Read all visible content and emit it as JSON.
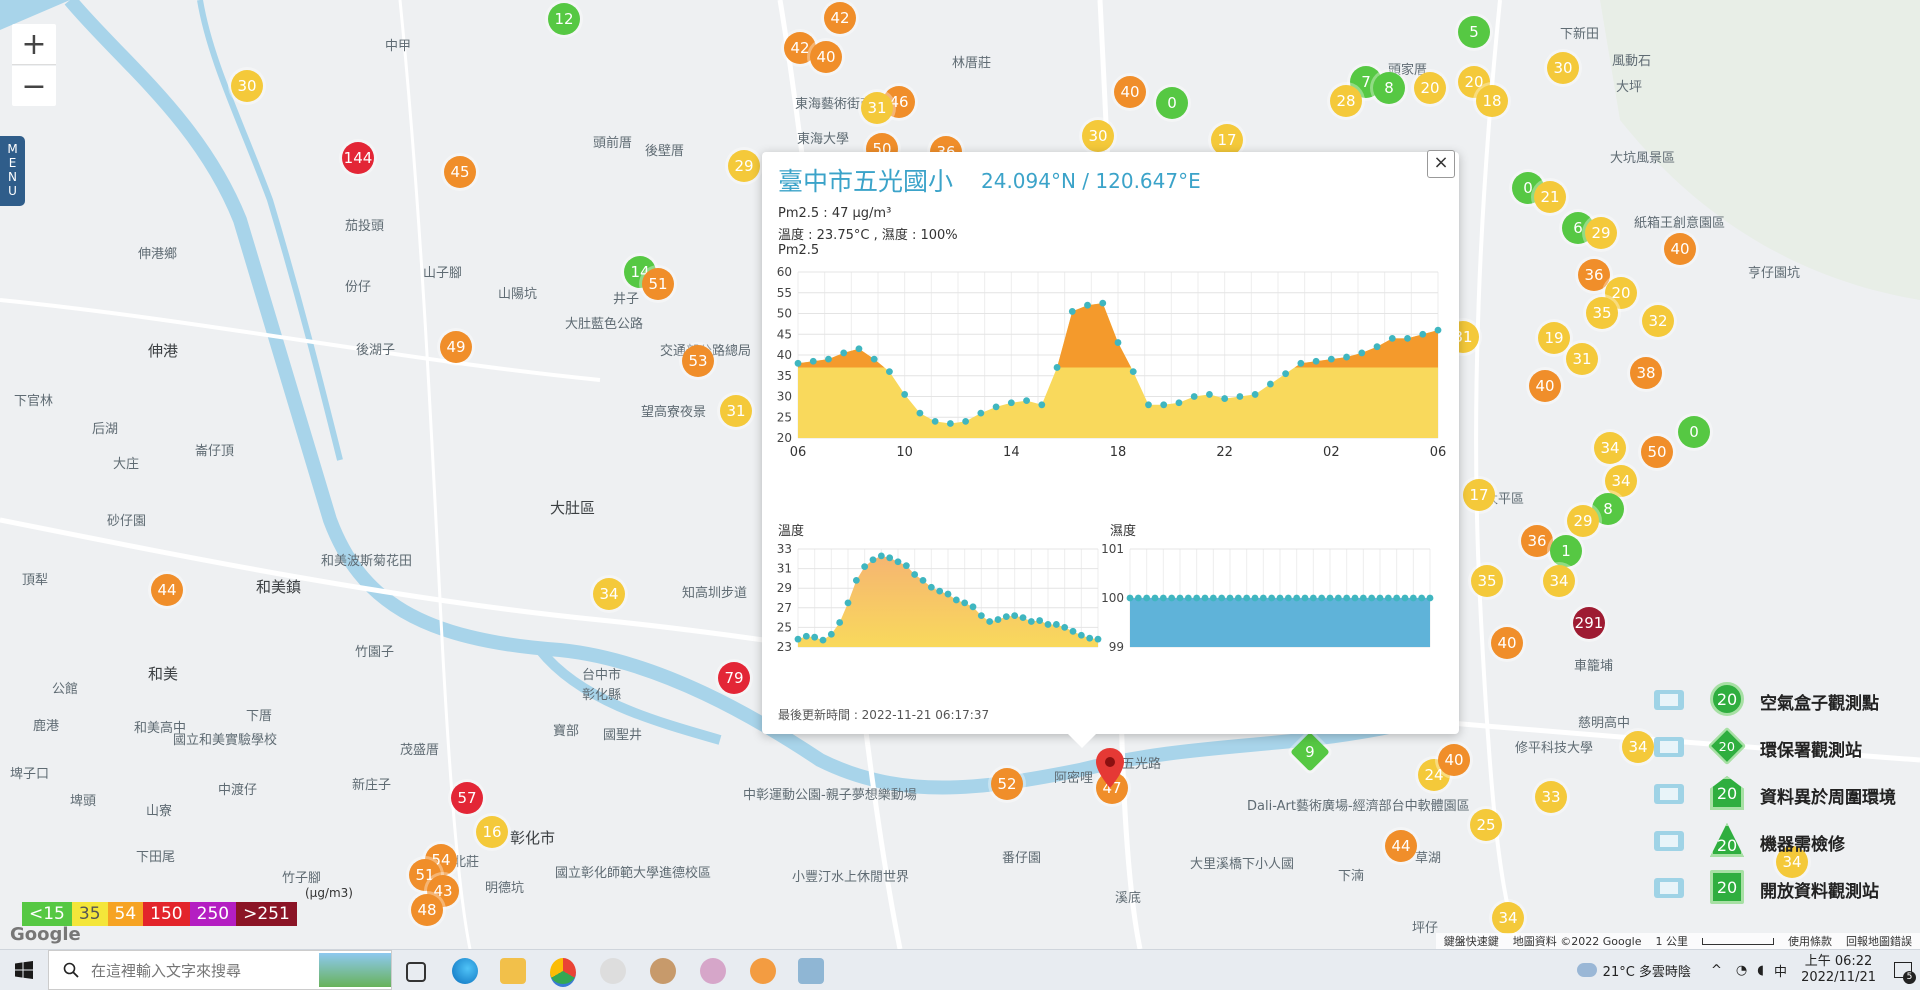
{
  "map": {
    "zoom_in": "+",
    "zoom_out": "−",
    "menu_label": "MENU",
    "places": [
      {
        "name": "伸港鄉",
        "big": false
      },
      {
        "name": "伸港",
        "big": true
      },
      {
        "name": "和美鎮",
        "big": true
      },
      {
        "name": "和美",
        "big": true
      },
      {
        "name": "大肚區",
        "big": true
      },
      {
        "name": "彰化市",
        "big": true
      },
      {
        "name": "頭前厝",
        "big": false
      },
      {
        "name": "後壁厝",
        "big": false
      },
      {
        "name": "林厝莊",
        "big": false
      },
      {
        "name": "東海藝術街商圈",
        "big": false
      },
      {
        "name": "東海大學",
        "big": false
      },
      {
        "name": "大肚藍色公路",
        "big": false
      },
      {
        "name": "交通部公路總局",
        "big": false
      },
      {
        "name": "望高寮夜景",
        "big": false
      },
      {
        "name": "山陽坑",
        "big": false
      },
      {
        "name": "井子",
        "big": false
      },
      {
        "name": "後湖子",
        "big": false
      },
      {
        "name": "份仔",
        "big": false
      },
      {
        "name": "茄投頭",
        "big": false
      },
      {
        "name": "山子腳",
        "big": false
      },
      {
        "name": "中甲",
        "big": false
      },
      {
        "name": "下官林",
        "big": false
      },
      {
        "name": "后湖",
        "big": false
      },
      {
        "name": "大庄",
        "big": false
      },
      {
        "name": "崙仔頂",
        "big": false
      },
      {
        "name": "砂仔園",
        "big": false
      },
      {
        "name": "頂犁",
        "big": false
      },
      {
        "name": "公館",
        "big": false
      },
      {
        "name": "下厝",
        "big": false
      },
      {
        "name": "竹園子",
        "big": false
      },
      {
        "name": "新庄子",
        "big": false
      },
      {
        "name": "茂盛厝",
        "big": false
      },
      {
        "name": "中渡仔",
        "big": false
      },
      {
        "name": "山寮",
        "big": false
      },
      {
        "name": "埤頭",
        "big": false
      },
      {
        "name": "下田尾",
        "big": false
      },
      {
        "name": "竹子腳",
        "big": false
      },
      {
        "name": "萬北莊",
        "big": false
      },
      {
        "name": "明德坑",
        "big": false
      },
      {
        "name": "台中市",
        "big": false
      },
      {
        "name": "彰化縣",
        "big": false
      },
      {
        "name": "寶部",
        "big": false
      },
      {
        "name": "國聖井",
        "big": false
      },
      {
        "name": "番仔園",
        "big": false
      },
      {
        "name": "阿密哩",
        "big": false
      },
      {
        "name": "溪底",
        "big": false
      },
      {
        "name": "大里溪橋下小人國",
        "big": false
      },
      {
        "name": "草湖",
        "big": false
      },
      {
        "name": "下湳",
        "big": false
      },
      {
        "name": "坪仔",
        "big": false
      },
      {
        "name": "太平區",
        "big": false
      },
      {
        "name": "大坑風景區",
        "big": false
      },
      {
        "name": "風動石",
        "big": false
      },
      {
        "name": "大坪",
        "big": false
      },
      {
        "name": "下新田",
        "big": false
      },
      {
        "name": "頭家厝",
        "big": false
      },
      {
        "name": "紙箱王創意園區",
        "big": false
      },
      {
        "name": "亨仔園坑",
        "big": false
      },
      {
        "name": "車籠埔",
        "big": false
      },
      {
        "name": "慈明高中",
        "big": false
      },
      {
        "name": "修平科技大學",
        "big": false
      },
      {
        "name": "知高圳步道",
        "big": false
      },
      {
        "name": "國立彰化師範大學進德校區",
        "big": false
      },
      {
        "name": "中彰運動公園-親子夢想樂動場",
        "big": false
      },
      {
        "name": "小豐汀水上休閒世界",
        "big": false
      },
      {
        "name": "Dali-Art藝術廣場-經濟部台中軟體園區",
        "big": false
      },
      {
        "name": "五光路",
        "big": false
      },
      {
        "name": "和美波斯菊花田",
        "big": false
      },
      {
        "name": "國立和美實驗學校",
        "big": false
      },
      {
        "name": "鹿港",
        "big": false
      },
      {
        "name": "和美高中",
        "big": false
      },
      {
        "name": "埤子口",
        "big": false
      }
    ],
    "markers": [
      {
        "v": "12",
        "c": "#56c843",
        "s": "circle"
      },
      {
        "v": "42",
        "c": "#f08e2a",
        "s": "circle"
      },
      {
        "v": "40",
        "c": "#f08e2a",
        "s": "circle"
      },
      {
        "v": "42",
        "c": "#f08e2a",
        "s": "circle"
      },
      {
        "v": "30",
        "c": "#f4c93a",
        "s": "circle"
      },
      {
        "v": "144",
        "c": "#e32636",
        "s": "circle"
      },
      {
        "v": "45",
        "c": "#f08e2a",
        "s": "circle"
      },
      {
        "v": "46",
        "c": "#f08e2a",
        "s": "circle"
      },
      {
        "v": "31",
        "c": "#f4c93a",
        "s": "circle"
      },
      {
        "v": "50",
        "c": "#f08e2a",
        "s": "circle"
      },
      {
        "v": "36",
        "c": "#f08e2a",
        "s": "circle"
      },
      {
        "v": "29",
        "c": "#f4c93a",
        "s": "circle"
      },
      {
        "v": "40",
        "c": "#f08e2a",
        "s": "circle"
      },
      {
        "v": "0",
        "c": "#56c843",
        "s": "circle"
      },
      {
        "v": "30",
        "c": "#f4c93a",
        "s": "circle"
      },
      {
        "v": "17",
        "c": "#f4c93a",
        "s": "circle"
      },
      {
        "v": "5",
        "c": "#56c843",
        "s": "circle"
      },
      {
        "v": "7",
        "c": "#56c843",
        "s": "circle"
      },
      {
        "v": "28",
        "c": "#f4c93a",
        "s": "circle"
      },
      {
        "v": "8",
        "c": "#56c843",
        "s": "circle"
      },
      {
        "v": "20",
        "c": "#f4c93a",
        "s": "circle"
      },
      {
        "v": "20",
        "c": "#f4c93a",
        "s": "circle"
      },
      {
        "v": "18",
        "c": "#f4c93a",
        "s": "circle"
      },
      {
        "v": "30",
        "c": "#f4c93a",
        "s": "circle"
      },
      {
        "v": "14",
        "c": "#56c843",
        "s": "circle"
      },
      {
        "v": "51",
        "c": "#f08e2a",
        "s": "circle"
      },
      {
        "v": "49",
        "c": "#f08e2a",
        "s": "circle"
      },
      {
        "v": "53",
        "c": "#f08e2a",
        "s": "circle"
      },
      {
        "v": "31",
        "c": "#f4c93a",
        "s": "circle"
      },
      {
        "v": "0",
        "c": "#56c843",
        "s": "circle"
      },
      {
        "v": "21",
        "c": "#f4c93a",
        "s": "circle"
      },
      {
        "v": "6",
        "c": "#56c843",
        "s": "circle"
      },
      {
        "v": "29",
        "c": "#f4c93a",
        "s": "circle"
      },
      {
        "v": "36",
        "c": "#f08e2a",
        "s": "circle"
      },
      {
        "v": "20",
        "c": "#f4c93a",
        "s": "circle"
      },
      {
        "v": "35",
        "c": "#f4c93a",
        "s": "circle"
      },
      {
        "v": "40",
        "c": "#f08e2a",
        "s": "circle"
      },
      {
        "v": "32",
        "c": "#f4c93a",
        "s": "circle"
      },
      {
        "v": "19",
        "c": "#f4c93a",
        "s": "circle"
      },
      {
        "v": "31",
        "c": "#f4c93a",
        "s": "circle"
      },
      {
        "v": "38",
        "c": "#f08e2a",
        "s": "circle"
      },
      {
        "v": "40",
        "c": "#f08e2a",
        "s": "circle"
      },
      {
        "v": "31",
        "c": "#f4c93a",
        "s": "circle"
      },
      {
        "v": "0",
        "c": "#56c843",
        "s": "circle"
      },
      {
        "v": "34",
        "c": "#f4c93a",
        "s": "circle"
      },
      {
        "v": "50",
        "c": "#f08e2a",
        "s": "circle"
      },
      {
        "v": "34",
        "c": "#f4c93a",
        "s": "circle"
      },
      {
        "v": "17",
        "c": "#f4c93a",
        "s": "circle"
      },
      {
        "v": "8",
        "c": "#56c843",
        "s": "circle"
      },
      {
        "v": "29",
        "c": "#f4c93a",
        "s": "circle"
      },
      {
        "v": "36",
        "c": "#f08e2a",
        "s": "circle"
      },
      {
        "v": "1",
        "c": "#56c843",
        "s": "circle"
      },
      {
        "v": "35",
        "c": "#f4c93a",
        "s": "circle"
      },
      {
        "v": "34",
        "c": "#f4c93a",
        "s": "circle"
      },
      {
        "v": "291",
        "c": "#9e1b32",
        "s": "circle"
      },
      {
        "v": "40",
        "c": "#f08e2a",
        "s": "circle"
      },
      {
        "v": "44",
        "c": "#f08e2a",
        "s": "circle"
      },
      {
        "v": "34",
        "c": "#f4c93a",
        "s": "circle"
      },
      {
        "v": "79",
        "c": "#e32636",
        "s": "circle"
      },
      {
        "v": "57",
        "c": "#e32636",
        "s": "circle"
      },
      {
        "v": "16",
        "c": "#f4c93a",
        "s": "circle"
      },
      {
        "v": "54",
        "c": "#f08e2a",
        "s": "circle"
      },
      {
        "v": "51",
        "c": "#f08e2a",
        "s": "circle"
      },
      {
        "v": "43",
        "c": "#f08e2a",
        "s": "circle"
      },
      {
        "v": "48",
        "c": "#f08e2a",
        "s": "circle"
      },
      {
        "v": "52",
        "c": "#f08e2a",
        "s": "circle"
      },
      {
        "v": "47",
        "c": "#f08e2a",
        "s": "circle"
      },
      {
        "v": "9",
        "c": "#56c843",
        "s": "diamond"
      },
      {
        "v": "34",
        "c": "#f4c93a",
        "s": "circle"
      },
      {
        "v": "24",
        "c": "#f4c93a",
        "s": "circle"
      },
      {
        "v": "40",
        "c": "#f08e2a",
        "s": "circle"
      },
      {
        "v": "33",
        "c": "#f4c93a",
        "s": "circle"
      },
      {
        "v": "25",
        "c": "#f4c93a",
        "s": "circle"
      },
      {
        "v": "44",
        "c": "#f08e2a",
        "s": "circle"
      },
      {
        "v": "34",
        "c": "#f4c93a",
        "s": "circle"
      },
      {
        "v": "34",
        "c": "#f4c93a",
        "s": "circle"
      }
    ],
    "popup": {
      "station": "臺中市五光國小",
      "coord": "24.094°N / 120.647°E",
      "pm25_line": "Pm2.5 : 47 μg/m³",
      "temp_line": "溫度 : 23.75°C , 濕度 : 100%",
      "pm25_title": "Pm2.5",
      "temp_title": "溫度",
      "hum_title": "濕度",
      "updated": "最後更新時間 : 2022-11-21 06:17:37",
      "close": "×"
    },
    "legend": {
      "unit": "(μg/m3)",
      "levels": [
        {
          "label": "<15",
          "color": "#56c843"
        },
        {
          "label": "35",
          "color": "#f4e63a"
        },
        {
          "label": "54",
          "color": "#f6a323"
        },
        {
          "label": "150",
          "color": "#e3242b"
        },
        {
          "label": "250",
          "color": "#b41ec2"
        },
        {
          "label": ">251",
          "color": "#8b1426"
        }
      ]
    },
    "station_types": [
      {
        "label": "空氣盒子觀測點",
        "value": "20",
        "shape": "circle",
        "icon": "airbox-icon"
      },
      {
        "label": "環保署觀測站",
        "value": "20",
        "shape": "diamond",
        "icon": "epa-building-icon"
      },
      {
        "label": "資料異於周圍環境",
        "value": "20",
        "shape": "pentagon",
        "icon": "house-alert-icon"
      },
      {
        "label": "機器需檢修",
        "value": "20",
        "shape": "triangle",
        "icon": "cone-icon"
      },
      {
        "label": "開放資料觀測站",
        "value": "20",
        "shape": "square",
        "icon": "open-data-icon"
      }
    ],
    "footer": {
      "shortcuts": "鍵盤快速鍵",
      "mapdata": "地圖資料 ©2022 Google",
      "scale": "1 公里",
      "terms": "使用條款",
      "report": "回報地圖錯誤",
      "google": "Google"
    }
  },
  "chart_data": [
    {
      "type": "area",
      "title": "Pm2.5",
      "x_ticks": [
        "06",
        "10",
        "14",
        "18",
        "22",
        "02",
        "06"
      ],
      "ylim": [
        20,
        60
      ],
      "y_ticks": [
        20,
        25,
        30,
        35,
        40,
        45,
        50,
        55,
        60
      ],
      "series": [
        {
          "values": [
            38,
            38.5,
            39,
            40.5,
            41.5,
            39,
            36,
            30.5,
            26,
            24,
            23.5,
            24,
            26,
            27.5,
            28.5,
            29,
            28,
            37,
            50.5,
            52,
            52.5,
            43,
            36,
            28,
            28,
            28.5,
            30,
            30.5,
            29.5,
            30,
            30.5,
            33,
            35.5,
            38,
            38.5,
            39,
            39.5,
            40.5,
            42,
            44,
            44,
            45,
            46
          ]
        }
      ],
      "fill_split": 37,
      "colors": [
        "#f9d95c",
        "#f49a2c"
      ]
    },
    {
      "type": "area",
      "title": "溫度",
      "ylim": [
        23,
        33
      ],
      "y_ticks": [
        23,
        25,
        27,
        29,
        31,
        33
      ],
      "series": [
        {
          "values": [
            23.8,
            24.1,
            24.0,
            23.7,
            24.3,
            25.5,
            27.5,
            29.8,
            31.2,
            31.9,
            32.3,
            32.1,
            31.7,
            31.3,
            30.4,
            29.8,
            29.1,
            28.7,
            28.4,
            27.8,
            27.5,
            27.1,
            26.2,
            25.6,
            25.8,
            26.1,
            26.2,
            26.0,
            25.6,
            25.7,
            25.3,
            25.3,
            25.0,
            24.6,
            24.2,
            23.9,
            23.8
          ]
        }
      ],
      "colors": [
        "#f5b571",
        "#f9d95c"
      ]
    },
    {
      "type": "area",
      "title": "濕度",
      "ylim": [
        99,
        101
      ],
      "y_ticks": [
        99,
        100,
        101
      ],
      "series": [
        {
          "values": [
            100,
            100,
            100,
            100,
            100,
            100,
            100,
            100,
            100,
            100,
            100,
            100,
            100,
            100,
            100,
            100,
            100,
            100,
            100,
            100,
            100,
            100,
            100,
            100,
            100,
            100,
            100,
            100,
            100,
            100,
            100,
            100,
            100,
            100,
            100,
            100,
            100
          ]
        }
      ],
      "colors": [
        "#5fb3d9"
      ]
    }
  ],
  "taskbar": {
    "search_placeholder": "在這裡輸入文字來搜尋",
    "weather": "21°C 多雲時陰",
    "ime": "中",
    "time": "上午 06:22",
    "date": "2022/11/21",
    "notification_count": "5"
  }
}
